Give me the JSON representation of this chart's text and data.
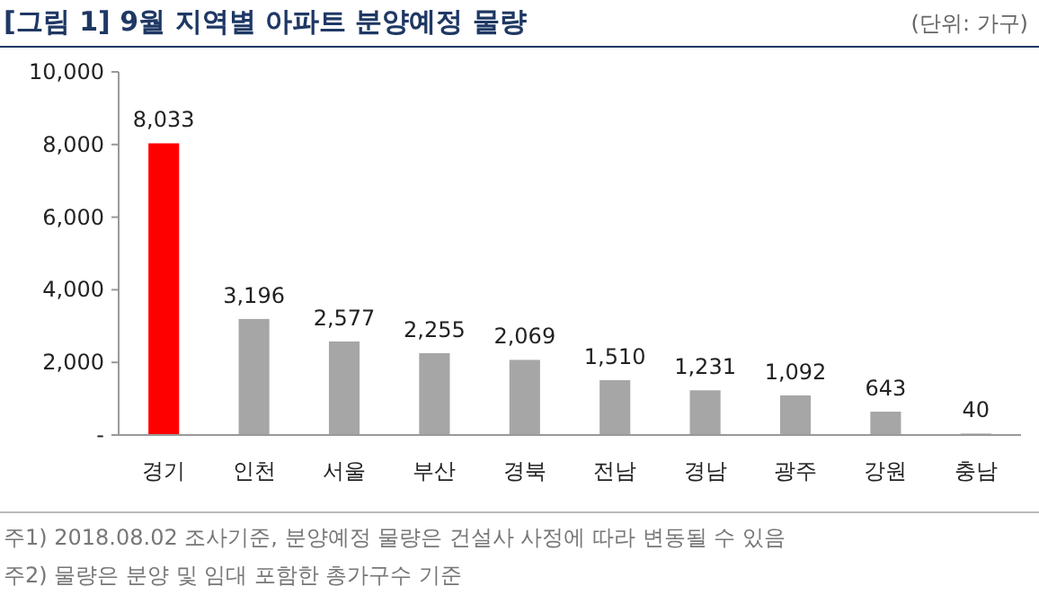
{
  "chart_data": {
    "type": "bar",
    "title": "[그림 1] 9월 지역별 아파트 분양예정 물량",
    "subtitle": "(단위: 가구)",
    "categories": [
      "경기",
      "인천",
      "서울",
      "부산",
      "경북",
      "전남",
      "경남",
      "광주",
      "강원",
      "충남"
    ],
    "values": [
      8033,
      3196,
      2577,
      2255,
      2069,
      1510,
      1231,
      1092,
      643,
      40
    ],
    "colors": [
      "#ff0000",
      "#a6a6a6",
      "#a6a6a6",
      "#a6a6a6",
      "#a6a6a6",
      "#a6a6a6",
      "#a6a6a6",
      "#a6a6a6",
      "#a6a6a6",
      "#a6a6a6"
    ],
    "ylim": [
      0,
      10000
    ],
    "yticks": [
      {
        "value": 0,
        "label": "-"
      },
      {
        "value": 2000,
        "label": "2,000"
      },
      {
        "value": 4000,
        "label": "4,000"
      },
      {
        "value": 6000,
        "label": "6,000"
      },
      {
        "value": 8000,
        "label": "8,000"
      },
      {
        "value": 10000,
        "label": "10,000"
      }
    ],
    "value_labels": [
      "8,033",
      "3,196",
      "2,577",
      "2,255",
      "2,069",
      "1,510",
      "1,231",
      "1,092",
      "643",
      "40"
    ],
    "grid": false,
    "annotations": [
      "주1) 2018.08.02 조사기준, 분양예정 물량은 건설사 사정에 따라 변동될 수 있음",
      "주2) 물량은 분양 및 임대 포함한 총가구수 기준"
    ]
  }
}
